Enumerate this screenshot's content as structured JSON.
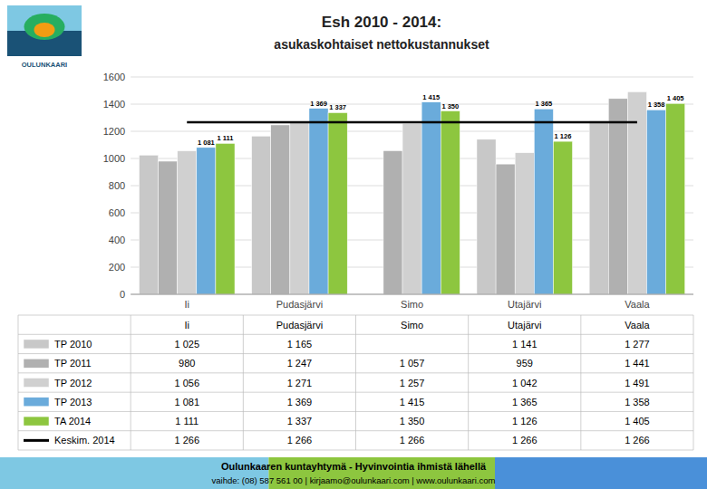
{
  "chart_data": {
    "type": "bar",
    "title": "Esh 2010 - 2014:",
    "subtitle": "asukaskohtaiset nettokustannukset",
    "categories": [
      "Ii",
      "Pudasjärvi",
      "Simo",
      "Utajärvi",
      "Vaala"
    ],
    "series": [
      {
        "name": "TP 2010",
        "color": "#c8c8c8",
        "values": [
          1025,
          1165,
          null,
          1141,
          1277
        ],
        "value_labels": [
          "1 025",
          "1 165",
          null,
          "1 141",
          "1 277"
        ]
      },
      {
        "name": "TP 2011",
        "color": "#b0b0b0",
        "values": [
          980,
          1247,
          1057,
          959,
          1441
        ],
        "value_labels": [
          "980",
          "1 247",
          "1 057",
          "959",
          "1 441"
        ]
      },
      {
        "name": "TP 2012",
        "color": "#d0d0d0",
        "values": [
          1056,
          1271,
          1257,
          1042,
          1491
        ],
        "value_labels": [
          "1 056",
          "1 271",
          "1 257",
          "1 042",
          "1 491"
        ]
      },
      {
        "name": "TP 2013",
        "color": "#6aabdb",
        "values": [
          1081,
          1369,
          1415,
          1365,
          1358
        ],
        "value_labels": [
          "1 081",
          "1 369",
          "1 415",
          "1 365",
          "1 358"
        ],
        "data_labels": true
      },
      {
        "name": "TA 2014",
        "color": "#8dc63f",
        "values": [
          1111,
          1337,
          1350,
          1126,
          1405
        ],
        "value_labels": [
          "1 111",
          "1 337",
          "1 350",
          "1 126",
          "1 405"
        ],
        "data_labels": true
      },
      {
        "name": "Keskim. 2014",
        "type": "line",
        "color": "#000000",
        "values": [
          1266,
          1266,
          1266,
          1266,
          1266
        ],
        "value_labels": [
          "1 266",
          "1 266",
          "1 266",
          "1 266",
          "1 266"
        ]
      }
    ],
    "ylim": [
      0,
      1600
    ],
    "yticks": [
      0,
      200,
      400,
      600,
      800,
      1000,
      1200,
      1400,
      1600
    ],
    "grid": true,
    "annotations": [
      "OULUNKAARI",
      "Oulunkaaren kuntayhtymä - Hyvinvointia ihmistä lähellä",
      "vaihde: (08) 587 561 00  |  kirjaamo@oulunkaari.com  |  www.oulunkaari.com"
    ]
  }
}
